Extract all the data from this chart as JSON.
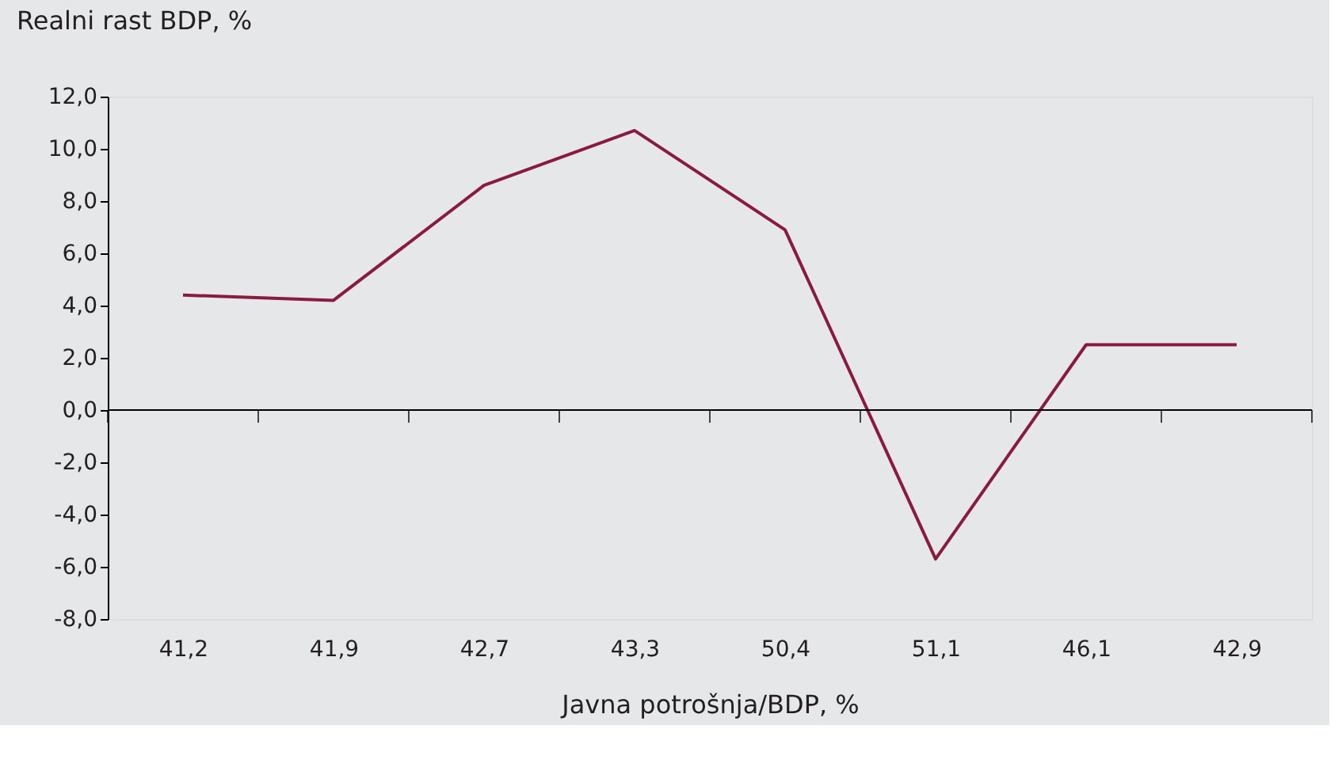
{
  "chart_data": {
    "type": "line",
    "xlabel": "Javna potrošnja/BDP, %",
    "ylabel": "Realni rast BDP, %",
    "categories": [
      "41,2",
      "41,9",
      "42,7",
      "43,3",
      "50,4",
      "51,1",
      "46,1",
      "42,9"
    ],
    "series": [
      {
        "color": "#8b1a3f",
        "values": [
          4.4,
          4.2,
          8.6,
          10.7,
          6.9,
          -5.7,
          2.5,
          2.5
        ]
      }
    ],
    "ylim": [
      -8,
      12
    ],
    "yticks": [
      {
        "value": -8,
        "label": "-8,0"
      },
      {
        "value": -6,
        "label": "-6,0"
      },
      {
        "value": -4,
        "label": "-4,0"
      },
      {
        "value": -2,
        "label": "-2,0"
      },
      {
        "value": 0,
        "label": "0,0"
      },
      {
        "value": 2,
        "label": "2,0"
      },
      {
        "value": 4,
        "label": "4,0"
      },
      {
        "value": 6,
        "label": "6,0"
      },
      {
        "value": 8,
        "label": "8,0"
      },
      {
        "value": 10,
        "label": "10,0"
      },
      {
        "value": 12,
        "label": "12,0"
      }
    ],
    "ref_lines": [
      {
        "axis": "y",
        "value": 0,
        "color": "#000000"
      }
    ],
    "marker": "none",
    "line_style": "solid"
  }
}
